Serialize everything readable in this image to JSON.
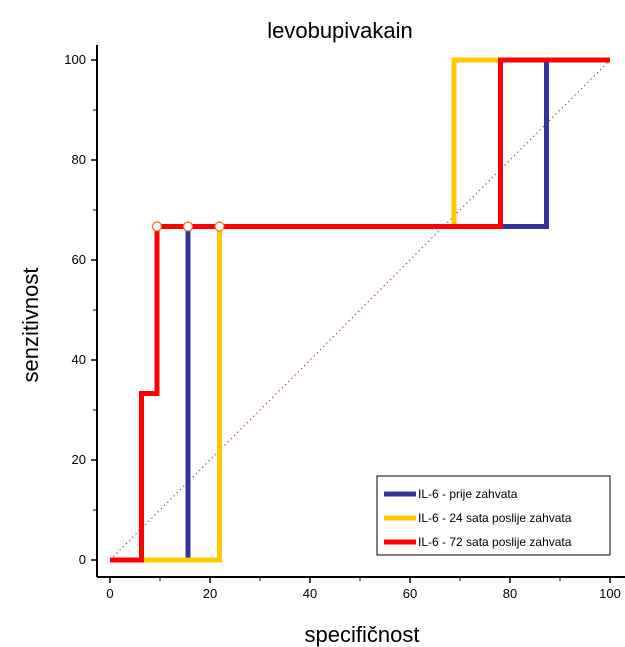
{
  "chart_data": {
    "type": "line",
    "title": "levobupivakain",
    "xlabel": "specifičnost",
    "ylabel": "senzitivnost",
    "xlim": [
      0,
      100
    ],
    "ylim": [
      0,
      100
    ],
    "xticks": [
      "0",
      "20",
      "40",
      "60",
      "80",
      "100"
    ],
    "yticks": [
      "0",
      "20",
      "40",
      "60",
      "80",
      "100"
    ],
    "legend_position": "bottom-right",
    "grid": false,
    "diagonal_reference": {
      "style": "dotted",
      "color": "#a04040",
      "x": [
        0,
        100
      ],
      "y": [
        0,
        100
      ]
    },
    "series": [
      {
        "name": "IL-6 - prije zahvata",
        "color": "#33339a",
        "x": [
          0,
          15.6,
          15.6,
          87.3,
          87.3,
          100
        ],
        "y": [
          0,
          0,
          66.7,
          66.7,
          100,
          100
        ]
      },
      {
        "name": "IL-6 - 24 sata poslije zahvata",
        "color": "#ffc800",
        "x": [
          0,
          21.9,
          21.9,
          68.8,
          68.8,
          100
        ],
        "y": [
          0,
          0,
          66.7,
          66.7,
          100,
          100
        ]
      },
      {
        "name": "IL-6 - 72 sata poslije zahvata",
        "color": "#ff0000",
        "x": [
          0,
          6.3,
          6.3,
          9.4,
          9.4,
          78.1,
          78.1,
          100
        ],
        "y": [
          0,
          0,
          33.3,
          33.3,
          66.7,
          66.7,
          100,
          100
        ]
      }
    ],
    "markers": [
      {
        "x": 9.4,
        "y": 66.7,
        "color": "#ff6a2a"
      },
      {
        "x": 15.6,
        "y": 66.7,
        "color": "#ff6a2a"
      },
      {
        "x": 21.9,
        "y": 66.7,
        "color": "#ff6a2a"
      }
    ]
  }
}
